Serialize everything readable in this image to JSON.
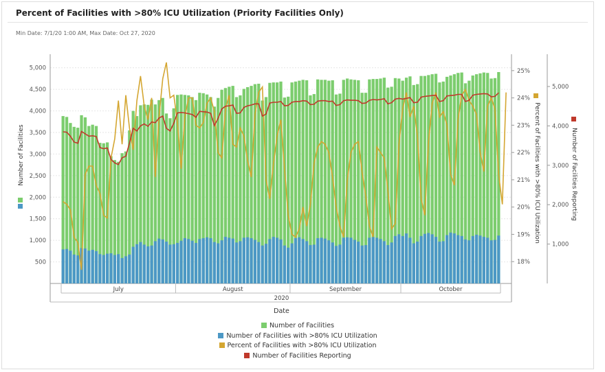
{
  "header": {
    "title": "Percent of Facilities with >80% ICU Utilization (Priority Facilities Only)",
    "date_range": "Min Date: 7/1/20 1:00 AM, Max Date: Oct 27, 2020"
  },
  "colors": {
    "facilities": "#7ccd6e",
    "high_util": "#4c98c5",
    "percent": "#d4a631",
    "reporting": "#c0392b"
  },
  "legend": {
    "facilities": "Number of Facilities",
    "high_util": "Number of Facilities with >80% ICU Utilization",
    "percent": "Percent of Facilities with >80% ICU Utilization",
    "reporting": "Number of Facilities Reporting"
  },
  "chart_data": {
    "type": "bar",
    "title": "Percent of Facilities with >80% ICU Utilization (Priority Facilities Only)",
    "xlabel": "Date",
    "x_year": "2020",
    "months": [
      "July",
      "August",
      "September",
      "October"
    ],
    "month_start_index": [
      0,
      31,
      62,
      92
    ],
    "day_count": 119,
    "left_axis": {
      "label": "Number of Facilities",
      "ticks": [
        "500",
        "1,000",
        "1,500",
        "2,000",
        "2,500",
        "3,000",
        "3,500",
        "4,000",
        "4,500",
        "5,000"
      ],
      "range": [
        0,
        5250
      ]
    },
    "right_axis_1": {
      "label": "Percent of Facilities with >80% ICU Utilization",
      "ticks": [
        "18%",
        "19%",
        "20%",
        "21%",
        "22%",
        "23%",
        "24%",
        "25%"
      ],
      "range": [
        17.2,
        25.5
      ]
    },
    "right_axis_2": {
      "label": "Number of Facilities Reporting",
      "ticks": [
        "1,000",
        "2,000",
        "3,000",
        "4,000",
        "5,000"
      ],
      "range": [
        0,
        5750
      ]
    },
    "series": [
      {
        "name": "Number of Facilities",
        "axis": "left",
        "kind": "bar",
        "values": [
          3880,
          3860,
          3720,
          3630,
          3610,
          3900,
          3850,
          3650,
          3680,
          3650,
          3260,
          3250,
          3270,
          2950,
          2860,
          2820,
          3020,
          3060,
          3550,
          4000,
          3880,
          4130,
          4150,
          4140,
          4260,
          4150,
          4250,
          4300,
          3940,
          3830,
          4060,
          4370,
          4380,
          4370,
          4360,
          4320,
          4250,
          4420,
          4410,
          4380,
          4320,
          4100,
          4300,
          4490,
          4530,
          4560,
          4580,
          4320,
          4360,
          4510,
          4550,
          4580,
          4620,
          4630,
          4240,
          4320,
          4650,
          4660,
          4660,
          4680,
          4310,
          4330,
          4660,
          4680,
          4700,
          4720,
          4710,
          4360,
          4390,
          4730,
          4720,
          4720,
          4700,
          4710,
          4380,
          4400,
          4720,
          4750,
          4730,
          4720,
          4710,
          4420,
          4420,
          4730,
          4740,
          4740,
          4750,
          4770,
          4540,
          4560,
          4760,
          4750,
          4700,
          4770,
          4800,
          4600,
          4620,
          4810,
          4810,
          4830,
          4850,
          4860,
          4660,
          4680,
          4790,
          4820,
          4850,
          4880,
          4890,
          4640,
          4700,
          4820,
          4850,
          4870,
          4890,
          4880,
          4750,
          4760,
          4900
        ]
      },
      {
        "name": "Number of Facilities with >80% ICU Utilization",
        "axis": "left",
        "kind": "bar",
        "values": [
          790,
          800,
          760,
          670,
          650,
          820,
          810,
          760,
          780,
          750,
          680,
          660,
          690,
          700,
          660,
          680,
          590,
          630,
          670,
          850,
          910,
          960,
          900,
          860,
          880,
          980,
          1040,
          1020,
          970,
          900,
          910,
          940,
          990,
          1050,
          1030,
          990,
          940,
          1030,
          1050,
          1070,
          1050,
          960,
          930,
          1000,
          1080,
          1060,
          1040,
          950,
          980,
          1060,
          1070,
          1050,
          1010,
          960,
          880,
          920,
          1030,
          1080,
          1060,
          1020,
          880,
          830,
          930,
          1050,
          1070,
          1030,
          980,
          890,
          900,
          1050,
          1060,
          1040,
          1000,
          950,
          870,
          900,
          1060,
          1070,
          1060,
          1010,
          970,
          880,
          890,
          1060,
          1080,
          1060,
          1030,
          980,
          890,
          950,
          1100,
          1140,
          1100,
          1160,
          1060,
          930,
          970,
          1100,
          1150,
          1170,
          1140,
          1080,
          970,
          980,
          1120,
          1180,
          1160,
          1120,
          1100,
          1020,
          1000,
          1100,
          1130,
          1110,
          1080,
          1060,
          1000,
          1010,
          1110
        ]
      },
      {
        "name": "Percent of Facilities with >80% ICU Utilization",
        "axis": "right_1",
        "kind": "line",
        "values": [
          20.2,
          20.1,
          19.9,
          18.9,
          18.7,
          17.7,
          21.2,
          21.5,
          21.5,
          20.8,
          20.5,
          19.7,
          19.6,
          21.8,
          22.5,
          23.9,
          22.3,
          24.1,
          22.9,
          22.1,
          23.9,
          24.8,
          23.7,
          23.2,
          24.0,
          21.1,
          23.3,
          24.7,
          25.3,
          24.0,
          24.1,
          23.1,
          21.4,
          23.3,
          24.0,
          24.0,
          23.0,
          22.9,
          23.1,
          23.8,
          24.0,
          23.5,
          22.0,
          21.8,
          23.6,
          24.1,
          22.3,
          22.2,
          22.9,
          22.6,
          21.7,
          21.1,
          23.4,
          24.2,
          24.4,
          21.0,
          20.3,
          21.6,
          22.6,
          23.2,
          21.4,
          19.7,
          19.0,
          18.9,
          19.2,
          20.0,
          19.3,
          20.1,
          21.6,
          22.2,
          22.4,
          22.3,
          22.0,
          21.1,
          20.0,
          19.3,
          18.9,
          21.0,
          22.0,
          22.3,
          22.4,
          21.3,
          20.4,
          19.3,
          18.9,
          22.2,
          22.0,
          21.8,
          20.6,
          19.2,
          19.4,
          22.3,
          23.6,
          24.2,
          23.3,
          23.7,
          22.6,
          20.3,
          19.7,
          22.4,
          23.8,
          24.2,
          23.3,
          23.5,
          23.0,
          21.2,
          20.8,
          23.2,
          24.1,
          24.3,
          23.9,
          23.7,
          23.4,
          22.0,
          21.3,
          23.7,
          24.0,
          23.6,
          21.2,
          20.1,
          24.2
        ]
      },
      {
        "name": "Number of Facilities Reporting",
        "axis": "right_2",
        "kind": "line",
        "values": [
          3850,
          3840,
          3740,
          3590,
          3560,
          3860,
          3800,
          3740,
          3750,
          3730,
          3450,
          3420,
          3440,
          3150,
          3060,
          3020,
          3190,
          3230,
          3560,
          3940,
          3870,
          4000,
          4050,
          3990,
          4100,
          4080,
          4200,
          4250,
          3940,
          3870,
          4070,
          4330,
          4340,
          4330,
          4310,
          4290,
          4220,
          4370,
          4360,
          4350,
          4320,
          4010,
          4190,
          4430,
          4500,
          4510,
          4530,
          4320,
          4330,
          4470,
          4510,
          4530,
          4560,
          4560,
          4250,
          4300,
          4580,
          4600,
          4600,
          4620,
          4510,
          4520,
          4600,
          4620,
          4620,
          4640,
          4630,
          4540,
          4550,
          4630,
          4640,
          4640,
          4620,
          4630,
          4520,
          4540,
          4640,
          4660,
          4650,
          4650,
          4640,
          4570,
          4580,
          4650,
          4670,
          4660,
          4670,
          4690,
          4560,
          4590,
          4680,
          4700,
          4680,
          4700,
          4720,
          4590,
          4600,
          4730,
          4750,
          4760,
          4770,
          4780,
          4620,
          4640,
          4760,
          4770,
          4780,
          4800,
          4800,
          4620,
          4650,
          4780,
          4800,
          4810,
          4820,
          4810,
          4740,
          4750,
          4840
        ]
      }
    ]
  }
}
